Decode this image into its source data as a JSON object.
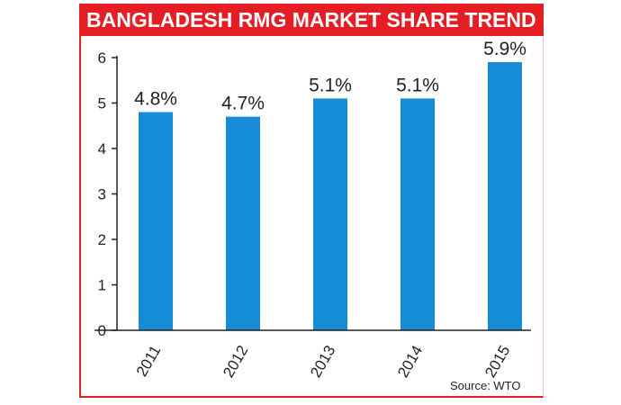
{
  "chart_data": {
    "type": "bar",
    "title": "BANGLADESH RMG MARKET SHARE TREND",
    "categories": [
      "2011",
      "2012",
      "2013",
      "2014",
      "2015"
    ],
    "values": [
      4.8,
      4.7,
      5.1,
      5.1,
      5.9
    ],
    "data_labels": [
      "4.8%",
      "4.7%",
      "5.1%",
      "5.1%",
      "5.9%"
    ],
    "yticks": [
      "0",
      "1",
      "2",
      "3",
      "4",
      "5",
      "6"
    ],
    "ylim": [
      0,
      6
    ],
    "xlabel": "",
    "ylabel": "",
    "grid": false,
    "legend": "none",
    "bar_color": "#168bd6",
    "source": "Source: WTO"
  },
  "colors": {
    "accent": "#e51e25",
    "bar": "#168bd6"
  }
}
